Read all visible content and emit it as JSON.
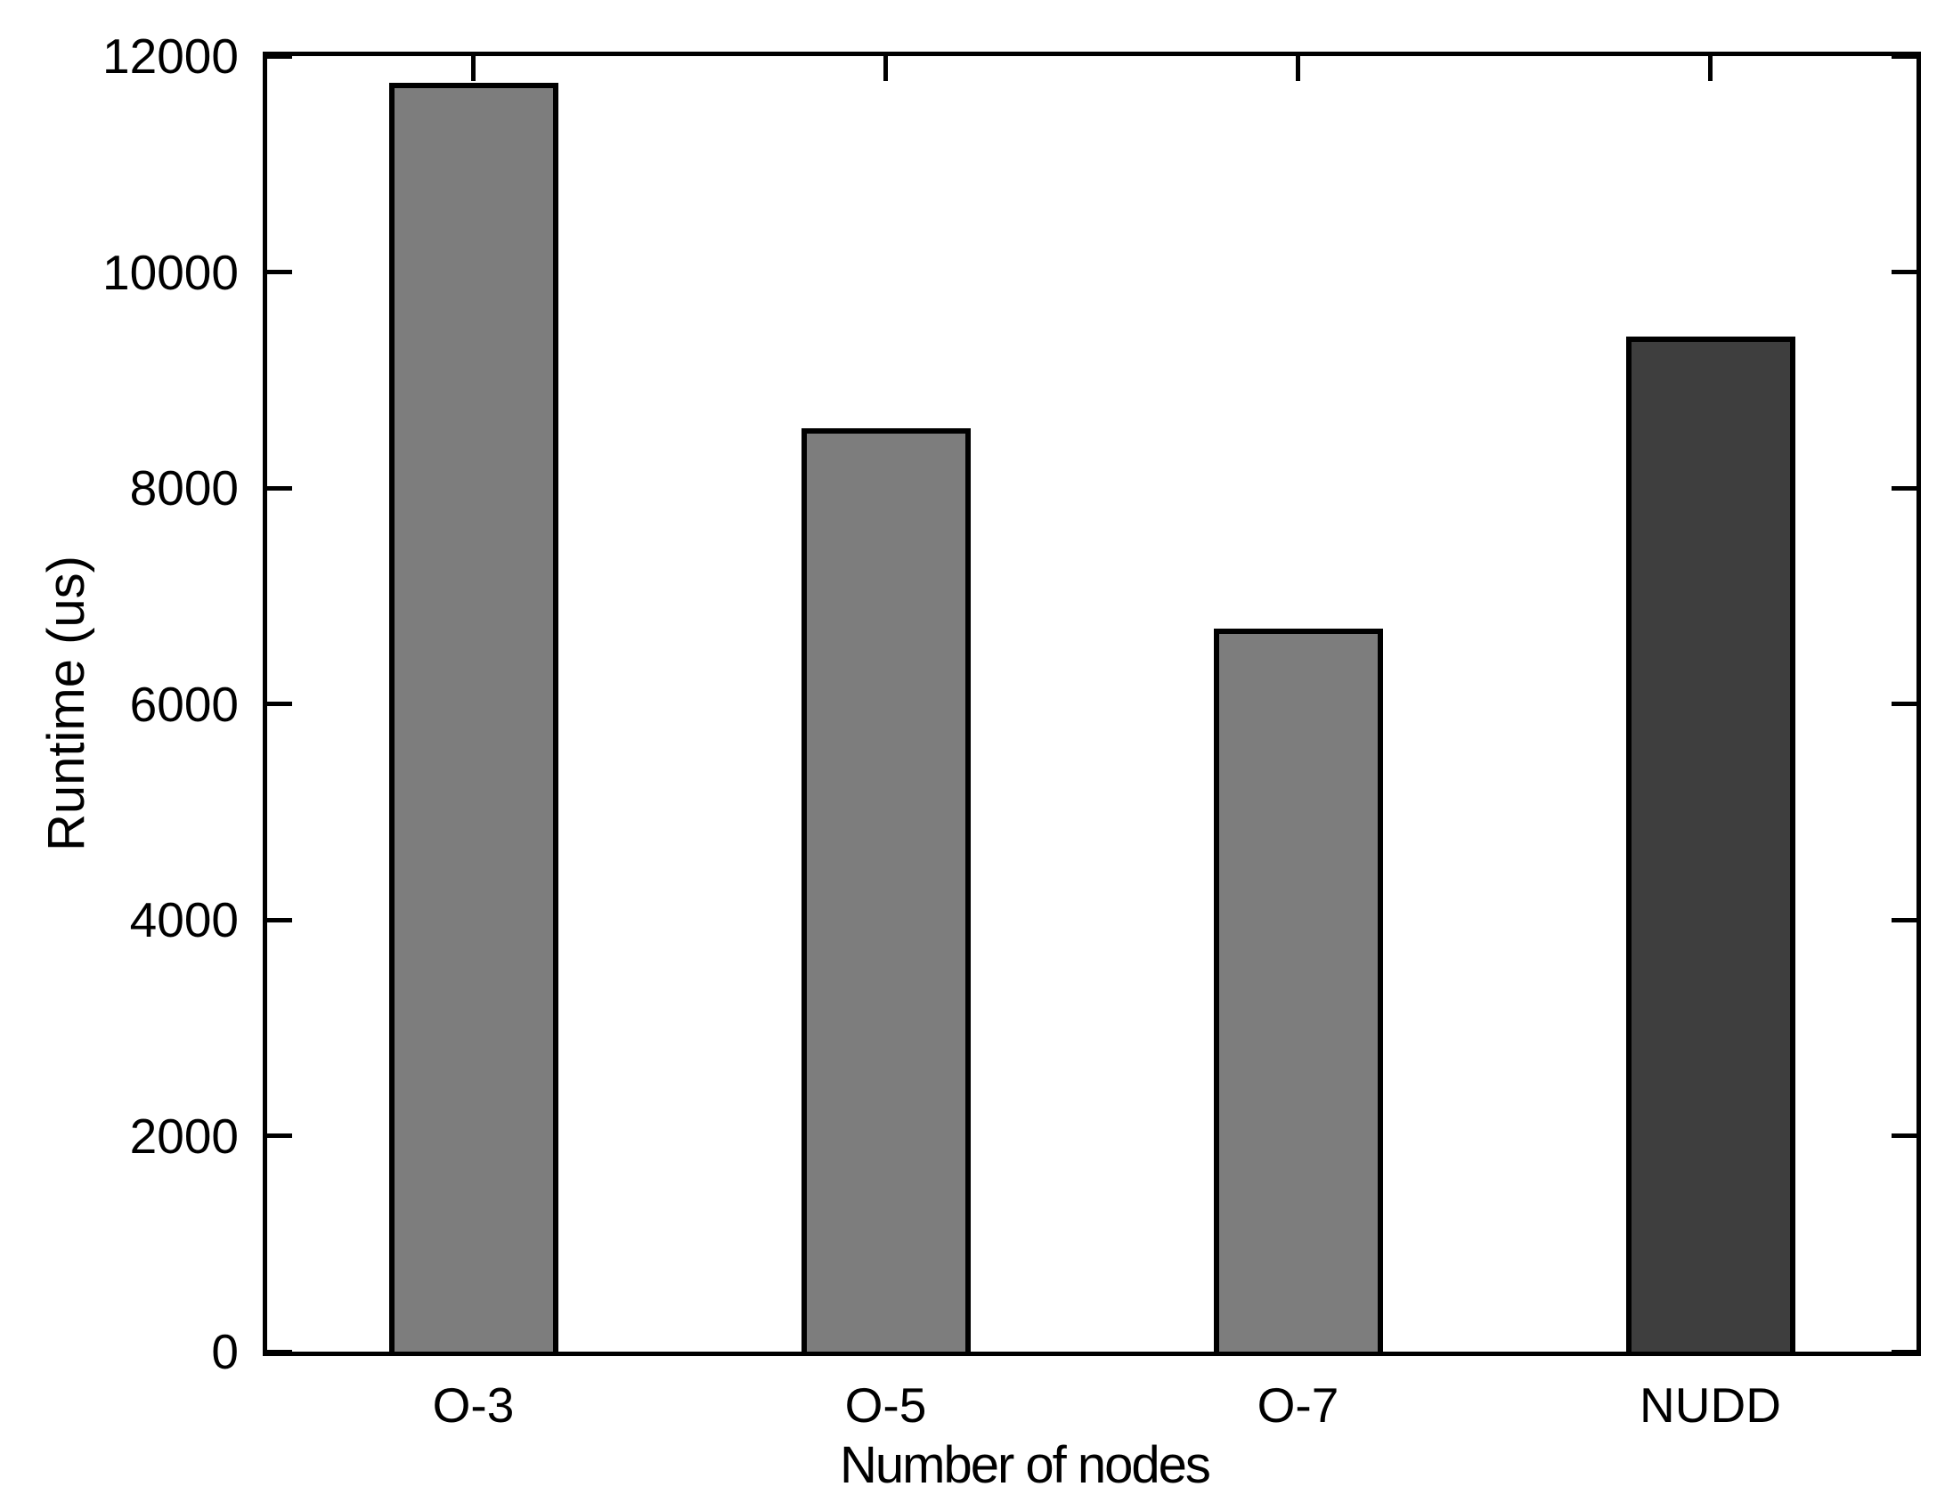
{
  "figure": {
    "background_color": "#ffffff",
    "frame_color": "#000000",
    "text_color": "#000000"
  },
  "chart_data": {
    "type": "bar",
    "title": "",
    "xlabel": "Number of nodes",
    "ylabel": "Runtime (us)",
    "categories": [
      "O-3",
      "O-5",
      "O-7",
      "NUDD"
    ],
    "values": [
      11750,
      8550,
      6700,
      9400
    ],
    "bar_colors": [
      "#7d7d7d",
      "#7d7d7d",
      "#7d7d7d",
      "#3e3e3e"
    ],
    "bar_border_color": "#000000",
    "ylim": [
      0,
      12000
    ],
    "yticks": [
      0,
      2000,
      4000,
      6000,
      8000,
      10000,
      12000
    ],
    "grid": false,
    "legend": false,
    "box": true,
    "tick_direction": "in"
  }
}
